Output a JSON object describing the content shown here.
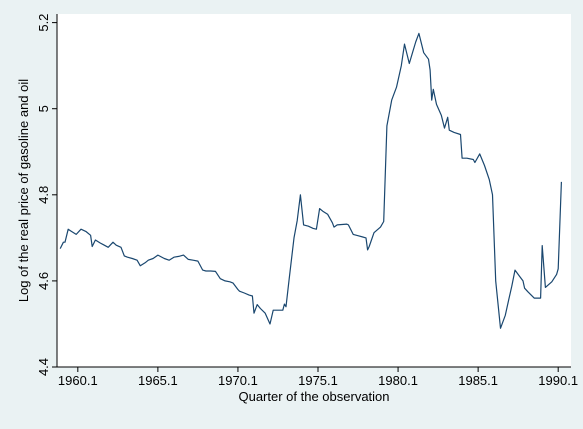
{
  "chart_data": {
    "type": "line",
    "title": "",
    "xlabel": "Quarter of the observation",
    "ylabel": "Log of the real price of gasoline and oil",
    "xlim": [
      1958.8,
      1990.9
    ],
    "ylim": [
      4.4,
      5.22
    ],
    "x_ticks": [
      1960.1,
      1965.1,
      1970.1,
      1975.1,
      1980.1,
      1985.1,
      1990.1
    ],
    "x_tick_labels": [
      "1960.1",
      "1965.1",
      "1970.1",
      "1975.1",
      "1980.1",
      "1985.1",
      "1990.1"
    ],
    "y_ticks": [
      4.4,
      4.6,
      4.8,
      5.0,
      5.2
    ],
    "y_tick_labels": [
      "4.4",
      "4.6",
      "4.8",
      "5",
      "5.2"
    ],
    "grid": false,
    "legend": "none",
    "colors": {
      "line": "#1a476f",
      "plot_bg": "#ffffff",
      "outer_bg": "#eaf2f3"
    },
    "series": [
      {
        "x": [
          1959.0,
          1959.2,
          1959.3,
          1959.5,
          1959.7,
          1960.0,
          1960.3,
          1960.6,
          1960.9,
          1961.0,
          1961.2,
          1961.5,
          1961.7,
          1962.0,
          1962.3,
          1962.5,
          1962.8,
          1963.0,
          1963.2,
          1963.5,
          1963.8,
          1964.0,
          1964.3,
          1964.5,
          1964.8,
          1965.1,
          1965.5,
          1965.8,
          1966.1,
          1966.4,
          1966.7,
          1967.0,
          1967.3,
          1967.6,
          1967.9,
          1968.1,
          1968.4,
          1968.7,
          1969.0,
          1969.3,
          1969.6,
          1969.8,
          1970.1,
          1970.2,
          1970.5,
          1970.8,
          1971.0,
          1971.1,
          1971.3,
          1971.5,
          1971.8,
          1972.1,
          1972.3,
          1972.6,
          1972.9,
          1973.0,
          1973.1,
          1973.3,
          1973.6,
          1973.8,
          1974.0,
          1974.2,
          1974.5,
          1974.8,
          1975.0,
          1975.2,
          1975.4,
          1975.7,
          1976.0,
          1976.1,
          1976.3,
          1976.6,
          1976.9,
          1977.0,
          1977.3,
          1977.6,
          1977.9,
          1978.1,
          1978.2,
          1978.3,
          1978.6,
          1979.0,
          1979.2,
          1979.4,
          1979.7,
          1980.0,
          1980.3,
          1980.5,
          1980.8,
          1981.0,
          1981.2,
          1981.4,
          1981.7,
          1982.0,
          1982.1,
          1982.2,
          1982.3,
          1982.5,
          1982.8,
          1983.0,
          1983.2,
          1983.3,
          1983.6,
          1984.0,
          1984.1,
          1984.4,
          1984.8,
          1984.9,
          1985.2,
          1985.5,
          1985.8,
          1986.0,
          1986.2,
          1986.5,
          1986.8,
          1987.0,
          1987.2,
          1987.4,
          1987.7,
          1987.9,
          1988.0,
          1988.2,
          1988.6,
          1989.0,
          1989.1,
          1989.3,
          1989.7,
          1990.0,
          1990.1,
          1990.3
        ],
        "y": [
          4.675,
          4.69,
          4.69,
          4.72,
          4.715,
          4.708,
          4.72,
          4.715,
          4.706,
          4.68,
          4.695,
          4.688,
          4.684,
          4.678,
          4.69,
          4.683,
          4.678,
          4.658,
          4.655,
          4.652,
          4.648,
          4.635,
          4.642,
          4.648,
          4.652,
          4.66,
          4.652,
          4.648,
          4.655,
          4.657,
          4.66,
          4.65,
          4.648,
          4.646,
          4.625,
          4.623,
          4.623,
          4.622,
          4.605,
          4.6,
          4.598,
          4.595,
          4.58,
          4.576,
          4.572,
          4.567,
          4.565,
          4.525,
          4.545,
          4.536,
          4.525,
          4.5,
          4.532,
          4.532,
          4.532,
          4.546,
          4.54,
          4.605,
          4.7,
          4.74,
          4.8,
          4.73,
          4.727,
          4.722,
          4.72,
          4.768,
          4.762,
          4.755,
          4.735,
          4.725,
          4.73,
          4.731,
          4.732,
          4.73,
          4.708,
          4.705,
          4.702,
          4.7,
          4.672,
          4.68,
          4.712,
          4.725,
          4.738,
          4.96,
          5.02,
          5.05,
          5.1,
          5.15,
          5.105,
          5.13,
          5.155,
          5.175,
          5.13,
          5.115,
          5.09,
          5.02,
          5.045,
          5.01,
          4.985,
          4.955,
          4.98,
          4.95,
          4.945,
          4.94,
          4.885,
          4.885,
          4.882,
          4.875,
          4.895,
          4.868,
          4.835,
          4.8,
          4.6,
          4.49,
          4.52,
          4.555,
          4.588,
          4.625,
          4.61,
          4.6,
          4.583,
          4.575,
          4.56,
          4.56,
          4.682,
          4.585,
          4.598,
          4.615,
          4.628,
          4.83
        ]
      }
    ]
  }
}
